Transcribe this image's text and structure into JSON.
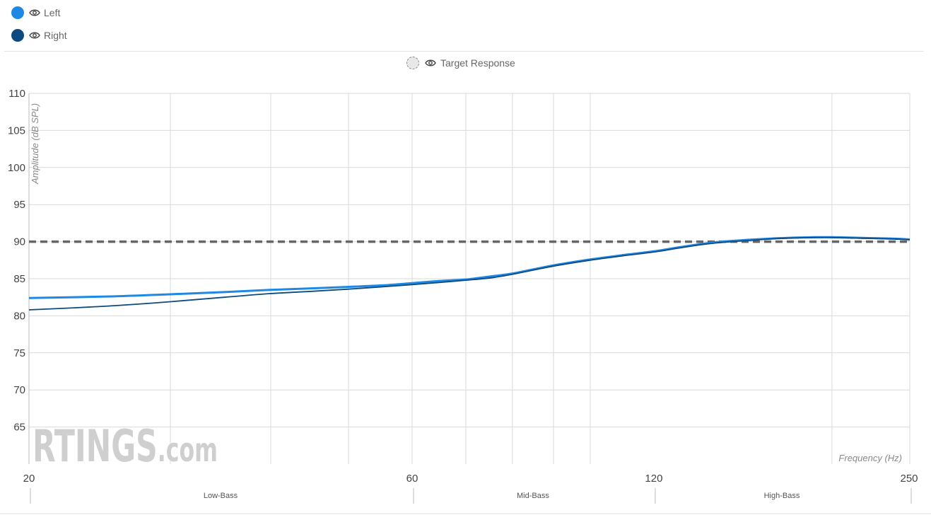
{
  "legend": {
    "items": [
      {
        "label": "Left",
        "color": "#1e88e5"
      },
      {
        "label": "Right",
        "color": "#0d4a80"
      }
    ],
    "target": {
      "label": "Target Response"
    }
  },
  "watermark": {
    "brand": "RTINGS",
    "suffix": ".com"
  },
  "chart_data": {
    "type": "line",
    "title": "",
    "xlabel": "Frequency (Hz)",
    "ylabel": "Amplitude (dB SPL)",
    "xscale": "log",
    "xlim": [
      20,
      250
    ],
    "ylim": [
      60,
      110
    ],
    "yticks": [
      110,
      105,
      100,
      95,
      90,
      85,
      80,
      75,
      70,
      65
    ],
    "xticks": [
      20,
      60,
      120,
      250
    ],
    "grid": true,
    "legend_position": "top-left",
    "bands": [
      {
        "label": "Low-Bass",
        "from": 20,
        "to": 60
      },
      {
        "label": "Mid-Bass",
        "from": 60,
        "to": 120
      },
      {
        "label": "High-Bass",
        "from": 120,
        "to": 250
      }
    ],
    "series": [
      {
        "name": "Left",
        "color": "#1e88e5",
        "x": [
          20,
          25,
          30,
          35,
          40,
          45,
          50,
          55,
          60,
          65,
          70,
          75,
          80,
          90,
          100,
          110,
          120,
          130,
          140,
          150,
          160,
          170,
          180,
          190,
          200,
          220,
          240,
          250
        ],
        "y": [
          82.4,
          82.6,
          82.9,
          83.2,
          83.5,
          83.7,
          83.9,
          84.1,
          84.4,
          84.7,
          84.9,
          85.3,
          85.7,
          86.8,
          87.6,
          88.2,
          88.7,
          89.3,
          89.8,
          90.1,
          90.3,
          90.45,
          90.55,
          90.6,
          90.6,
          90.5,
          90.4,
          90.3
        ]
      },
      {
        "name": "Right",
        "color": "#0d4a80",
        "x": [
          20,
          25,
          30,
          35,
          40,
          45,
          50,
          55,
          60,
          65,
          70,
          75,
          80,
          90,
          100,
          110,
          120,
          130,
          140,
          150,
          160,
          170,
          180,
          190,
          200,
          220,
          240,
          250
        ],
        "y": [
          80.8,
          81.3,
          81.9,
          82.5,
          83.0,
          83.3,
          83.6,
          83.9,
          84.2,
          84.5,
          84.8,
          85.1,
          85.6,
          86.7,
          87.5,
          88.1,
          88.6,
          89.2,
          89.7,
          90.0,
          90.2,
          90.4,
          90.5,
          90.55,
          90.55,
          90.45,
          90.35,
          90.25
        ]
      },
      {
        "name": "Target Response",
        "color": "#666666",
        "dashed": true,
        "x": [
          20,
          250
        ],
        "y": [
          90,
          90
        ]
      }
    ]
  }
}
